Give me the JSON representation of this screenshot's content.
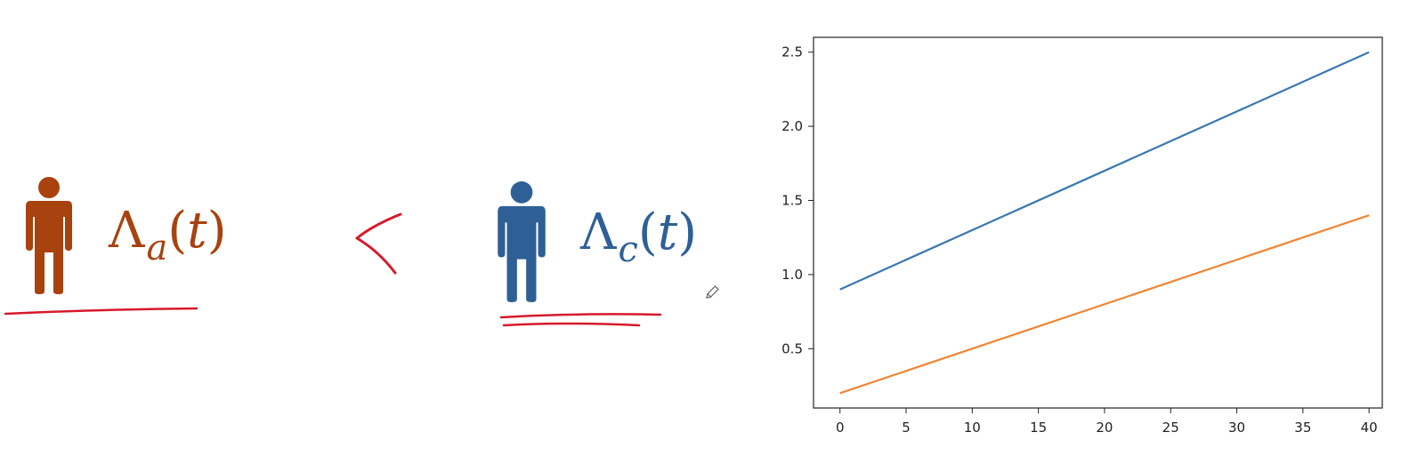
{
  "equation": {
    "left": {
      "symbol": "Λ",
      "subscript": "a",
      "open": "(",
      "variable": "t",
      "close": ")",
      "color": "#a8420f"
    },
    "right": {
      "symbol": "Λ",
      "subscript": "c",
      "open": "(",
      "variable": "t",
      "close": ")",
      "color": "#2e6096"
    },
    "relation_color": "#d61a2c"
  },
  "icons": {
    "left_person": "person-icon",
    "right_person": "person-icon",
    "pen_cursor": "pencil-icon"
  },
  "chart_data": {
    "type": "line",
    "x": [
      0,
      40
    ],
    "series": [
      {
        "values": [
          0.9,
          2.5
        ],
        "color": "#3a78b0"
      },
      {
        "values": [
          0.2,
          1.4
        ],
        "color": "#ef8533"
      }
    ],
    "xticks": [
      0,
      5,
      10,
      15,
      20,
      25,
      30,
      35,
      40
    ],
    "yticks": [
      0.5,
      1.0,
      1.5,
      2.0,
      2.5
    ],
    "xtick_labels": [
      "0",
      "5",
      "10",
      "15",
      "20",
      "25",
      "30",
      "35",
      "40"
    ],
    "ytick_labels": [
      "0.5",
      "1.0",
      "1.5",
      "2.0",
      "2.5"
    ],
    "xlim": [
      -2,
      41
    ],
    "ylim": [
      0.1,
      2.6
    ],
    "grid": false,
    "title": "",
    "xlabel": "",
    "ylabel": ""
  }
}
